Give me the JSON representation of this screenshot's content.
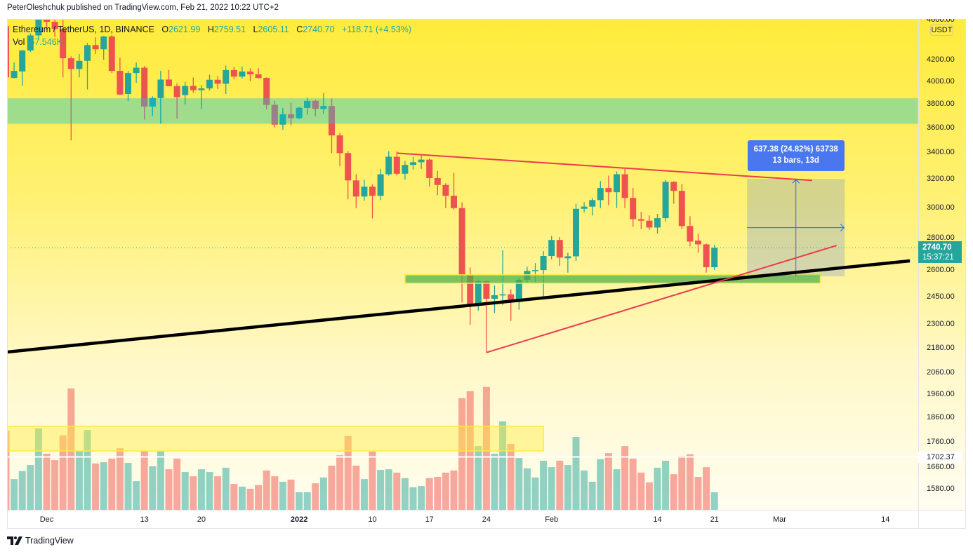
{
  "header": {
    "published_text": "PeterOleshchuk published on TradingView.com, Feb 21, 2022 10:22 UTC+2"
  },
  "legend": {
    "symbol": "Ethereum / TetherUS, 1D, BINANCE",
    "open_label": "O",
    "open": "2621.99",
    "high_label": "H",
    "high": "2759.51",
    "low_label": "L",
    "low": "2605.11",
    "close_label": "C",
    "close": "2740.70",
    "change": "+118.71 (+4.53%)",
    "volume_label": "Vol",
    "volume": "57.546K"
  },
  "price_axis": {
    "currency": "USDT",
    "ticks": [
      "4600.00",
      "4200.00",
      "4000.00",
      "3800.00",
      "3600.00",
      "3400.00",
      "3200.00",
      "3000.00",
      "2800.00",
      "2600.00",
      "2450.00",
      "2300.00",
      "2180.00",
      "2060.00",
      "1960.00",
      "1860.00",
      "1760.00",
      "1660.00",
      "1580.00"
    ],
    "last_price": "2740.70",
    "countdown": "15:37:21",
    "hline_label": "1702.37"
  },
  "time_axis": {
    "labels": [
      {
        "text": "Dec",
        "date": "2021-12-01",
        "bold": false
      },
      {
        "text": "13",
        "date": "2021-12-13",
        "bold": false
      },
      {
        "text": "20",
        "date": "2021-12-20",
        "bold": false
      },
      {
        "text": "2022",
        "date": "2022-01-01",
        "bold": true
      },
      {
        "text": "10",
        "date": "2022-01-10",
        "bold": false
      },
      {
        "text": "17",
        "date": "2022-01-17",
        "bold": false
      },
      {
        "text": "24",
        "date": "2022-01-24",
        "bold": false
      },
      {
        "text": "Feb",
        "date": "2022-02-01",
        "bold": false
      },
      {
        "text": "14",
        "date": "2022-02-14",
        "bold": false
      },
      {
        "text": "21",
        "date": "2022-02-21",
        "bold": false
      },
      {
        "text": "Mar",
        "date": "2022-03-01",
        "bold": false
      },
      {
        "text": "14",
        "date": "2022-03-14",
        "bold": false
      }
    ]
  },
  "measure": {
    "line1": "637.38 (24.82%) 63738",
    "line2": "13 bars, 13d"
  },
  "footer": {
    "brand": "TradingView"
  },
  "colors": {
    "up": "#26a69a",
    "down": "#ef5350",
    "up_in_zone": "#1ab0b0",
    "down_in_zone": "#9b8086",
    "resistance_zone": "#9fdc8c",
    "support_zone": "rgba(76,175,80,0.73)",
    "zone_border": "#ffeb3b",
    "trend_red": "#eb3b4f",
    "trend_black": "#000000",
    "measure_blue": "#2962ff",
    "measure_label_bg": "#4a76ef",
    "background_top": "#ffeb3b",
    "background_bottom": "#fffdf0"
  },
  "chart_data": {
    "type": "candlestick",
    "title": "Ethereum / TetherUS, 1D, BINANCE",
    "interval": "1D",
    "yscale": "log",
    "ylabel": "USDT",
    "ylim": [
      1540,
      4650
    ],
    "y_ticks": [
      4600,
      4200,
      4000,
      3800,
      3600,
      3400,
      3200,
      3000,
      2800,
      2600,
      2450,
      2300,
      2180,
      2060,
      1960,
      1860,
      1760,
      1660,
      1580
    ],
    "x_ticks": [
      "Dec",
      "13",
      "20",
      "2022",
      "10",
      "17",
      "24",
      "Feb",
      "14",
      "21",
      "Mar",
      "14"
    ],
    "grid": false,
    "last_price": 2740.7,
    "columns": [
      "date",
      "open",
      "high",
      "low",
      "close",
      "volume_k"
    ],
    "ohlcv": [
      [
        "2021-11-26",
        4540,
        4555,
        3919,
        4040,
        260
      ],
      [
        "2021-11-27",
        4035,
        4180,
        4030,
        4100,
        101
      ],
      [
        "2021-11-28",
        4095,
        4300,
        3964,
        4295,
        127
      ],
      [
        "2021-11-29",
        4295,
        4465,
        4280,
        4445,
        147
      ],
      [
        "2021-11-30",
        4445,
        4780,
        4400,
        4630,
        267
      ],
      [
        "2021-12-01",
        4630,
        4780,
        4500,
        4585,
        184
      ],
      [
        "2021-12-02",
        4585,
        4650,
        4430,
        4512,
        163
      ],
      [
        "2021-12-03",
        4512,
        4650,
        4040,
        4220,
        244
      ],
      [
        "2021-12-04",
        4220,
        4238,
        3500,
        4118,
        398
      ],
      [
        "2021-12-05",
        4118,
        4260,
        4040,
        4195,
        193
      ],
      [
        "2021-12-06",
        4195,
        4370,
        3930,
        4348,
        262
      ],
      [
        "2021-12-07",
        4348,
        4425,
        4260,
        4307,
        152
      ],
      [
        "2021-12-08",
        4307,
        4440,
        4205,
        4434,
        156
      ],
      [
        "2021-12-09",
        4434,
        4450,
        4080,
        4100,
        168
      ],
      [
        "2021-12-10",
        4100,
        4225,
        3880,
        3885,
        202
      ],
      [
        "2021-12-11",
        3890,
        4100,
        3830,
        4080,
        154
      ],
      [
        "2021-12-12",
        4080,
        4180,
        3990,
        4130,
        94
      ],
      [
        "2021-12-13",
        4130,
        4145,
        3670,
        3780,
        193
      ],
      [
        "2021-12-14",
        3781,
        3870,
        3700,
        3854,
        143
      ],
      [
        "2021-12-15",
        3854,
        4100,
        3636,
        4020,
        193
      ],
      [
        "2021-12-16",
        4020,
        4110,
        3960,
        3960,
        133
      ],
      [
        "2021-12-17",
        3960,
        3985,
        3680,
        3862,
        168
      ],
      [
        "2021-12-18",
        3880,
        4000,
        3800,
        3962,
        124
      ],
      [
        "2021-12-19",
        3962,
        4040,
        3900,
        3924,
        110
      ],
      [
        "2021-12-20",
        3924,
        3970,
        3760,
        3940,
        133
      ],
      [
        "2021-12-21",
        3940,
        4065,
        3920,
        4018,
        124
      ],
      [
        "2021-12-22",
        4018,
        4050,
        3935,
        3982,
        110
      ],
      [
        "2021-12-23",
        3982,
        4150,
        3890,
        4108,
        138
      ],
      [
        "2021-12-24",
        4108,
        4140,
        4025,
        4047,
        85
      ],
      [
        "2021-12-25",
        4047,
        4140,
        4030,
        4094,
        76
      ],
      [
        "2021-12-26",
        4094,
        4125,
        4005,
        4068,
        69
      ],
      [
        "2021-12-27",
        4068,
        4125,
        4030,
        4035,
        81
      ],
      [
        "2021-12-28",
        4035,
        4040,
        3760,
        3795,
        129
      ],
      [
        "2021-12-29",
        3795,
        3830,
        3605,
        3628,
        110
      ],
      [
        "2021-12-30",
        3628,
        3767,
        3585,
        3713,
        92
      ],
      [
        "2021-12-31",
        3713,
        3812,
        3622,
        3682,
        99
      ],
      [
        "2022-01-01",
        3682,
        3776,
        3674,
        3769,
        58
      ],
      [
        "2022-01-02",
        3769,
        3856,
        3712,
        3829,
        58
      ],
      [
        "2022-01-03",
        3829,
        3840,
        3698,
        3761,
        87
      ],
      [
        "2022-01-04",
        3761,
        3900,
        3720,
        3784,
        106
      ],
      [
        "2022-01-05",
        3784,
        3850,
        3400,
        3540,
        145
      ],
      [
        "2022-01-06",
        3540,
        3560,
        3300,
        3400,
        179
      ],
      [
        "2022-01-07",
        3400,
        3415,
        3060,
        3195,
        242
      ],
      [
        "2022-01-08",
        3195,
        3240,
        3000,
        3080,
        145
      ],
      [
        "2022-01-09",
        3080,
        3200,
        3050,
        3150,
        101
      ],
      [
        "2022-01-10",
        3150,
        3166,
        2930,
        3085,
        191
      ],
      [
        "2022-01-11",
        3085,
        3280,
        3055,
        3240,
        131
      ],
      [
        "2022-01-12",
        3240,
        3415,
        3230,
        3372,
        133
      ],
      [
        "2022-01-13",
        3372,
        3412,
        3232,
        3244,
        122
      ],
      [
        "2022-01-14",
        3244,
        3340,
        3200,
        3310,
        104
      ],
      [
        "2022-01-15",
        3310,
        3370,
        3275,
        3330,
        74
      ],
      [
        "2022-01-16",
        3330,
        3388,
        3280,
        3350,
        78
      ],
      [
        "2022-01-17",
        3350,
        3360,
        3150,
        3212,
        104
      ],
      [
        "2022-01-18",
        3212,
        3265,
        3090,
        3162,
        108
      ],
      [
        "2022-01-19",
        3162,
        3175,
        3000,
        3085,
        122
      ],
      [
        "2022-01-20",
        3085,
        3250,
        2990,
        3000,
        129
      ],
      [
        "2022-01-21",
        3000,
        3040,
        2420,
        2575,
        366
      ],
      [
        "2022-01-22",
        2575,
        2620,
        2300,
        2405,
        389
      ],
      [
        "2022-01-23",
        2405,
        2550,
        2375,
        2540,
        209
      ],
      [
        "2022-01-24",
        2540,
        2548,
        2159,
        2440,
        403
      ],
      [
        "2022-01-25",
        2440,
        2515,
        2362,
        2460,
        184
      ],
      [
        "2022-01-26",
        2460,
        2725,
        2405,
        2465,
        290
      ],
      [
        "2022-01-27",
        2465,
        2494,
        2320,
        2422,
        216
      ],
      [
        "2022-01-28",
        2422,
        2557,
        2380,
        2548,
        170
      ],
      [
        "2022-01-29",
        2548,
        2624,
        2526,
        2600,
        136
      ],
      [
        "2022-01-30",
        2600,
        2647,
        2535,
        2605,
        106
      ],
      [
        "2022-01-31",
        2605,
        2720,
        2450,
        2690,
        161
      ],
      [
        "2022-02-01",
        2690,
        2816,
        2670,
        2790,
        140
      ],
      [
        "2022-02-02",
        2790,
        2808,
        2630,
        2680,
        161
      ],
      [
        "2022-02-03",
        2676,
        2710,
        2590,
        2688,
        147
      ],
      [
        "2022-02-04",
        2688,
        3030,
        2660,
        2995,
        239
      ],
      [
        "2022-02-05",
        2995,
        3040,
        2970,
        3010,
        129
      ],
      [
        "2022-02-06",
        3010,
        3070,
        2950,
        3055,
        92
      ],
      [
        "2022-02-07",
        3055,
        3190,
        3000,
        3140,
        166
      ],
      [
        "2022-02-08",
        3140,
        3230,
        3020,
        3110,
        186
      ],
      [
        "2022-02-09",
        3110,
        3260,
        3000,
        3240,
        133
      ],
      [
        "2022-02-10",
        3240,
        3280,
        3000,
        3070,
        209
      ],
      [
        "2022-02-11",
        3070,
        3140,
        2875,
        2925,
        168
      ],
      [
        "2022-02-12",
        2925,
        2975,
        2860,
        2915,
        122
      ],
      [
        "2022-02-13",
        2915,
        2950,
        2855,
        2870,
        90
      ],
      [
        "2022-02-14",
        2870,
        2960,
        2830,
        2932,
        138
      ],
      [
        "2022-02-15",
        2932,
        3200,
        2910,
        3185,
        161
      ],
      [
        "2022-02-16",
        3185,
        3188,
        3030,
        3120,
        117
      ],
      [
        "2022-02-17",
        3120,
        3170,
        2860,
        2880,
        177
      ],
      [
        "2022-02-18",
        2880,
        2945,
        2750,
        2780,
        182
      ],
      [
        "2022-02-19",
        2786,
        2830,
        2710,
        2762,
        108
      ],
      [
        "2022-02-20",
        2762,
        2768,
        2590,
        2622,
        140
      ],
      [
        "2022-02-21",
        2621.99,
        2759.51,
        2605.11,
        2740.7,
        57.546
      ]
    ],
    "annotations": [
      {
        "type": "rectangle",
        "name": "resistance-zone",
        "price_top": 3854,
        "price_bottom": 3633,
        "span": "full-width"
      },
      {
        "type": "trendline",
        "name": "long-term-support-line",
        "start": {
          "date": "2021-11-26",
          "price": 2161
        },
        "end": {
          "date": "2022-03-17",
          "price": 2660
        },
        "width": 4.5
      },
      {
        "type": "trendline",
        "name": "triangle-upper-line",
        "start": {
          "date": "2022-01-13",
          "price": 3400
        },
        "end": {
          "date": "2022-03-05",
          "price": 3195
        },
        "width": 2
      },
      {
        "type": "trendline",
        "name": "triangle-lower-line",
        "start": {
          "date": "2022-01-24",
          "price": 2159
        },
        "end": {
          "date": "2022-03-08",
          "price": 2755
        },
        "width": 2
      },
      {
        "type": "rectangle",
        "name": "support-zone",
        "start_date": "2022-01-14",
        "end_date": "2022-03-06",
        "price_top": 2577,
        "price_bottom": 2528
      },
      {
        "type": "date_price_range",
        "name": "measure-range",
        "start": {
          "date": "2022-02-25",
          "price": 2568.07
        },
        "end": {
          "date": "2022-03-09",
          "price": 3205.45
        },
        "price_change": 637.38,
        "percent_change": 24.82,
        "bars": 13,
        "days": 13
      },
      {
        "type": "volume_highlight",
        "name": "volume-highlight-zone",
        "end_date": "2022-01-31",
        "volume_top_k": 274,
        "volume_bottom_k": 193
      },
      {
        "type": "horizontal_line",
        "name": "horizontal-line",
        "price": 1702.37
      }
    ]
  }
}
